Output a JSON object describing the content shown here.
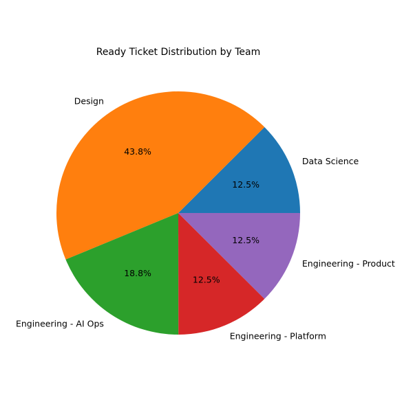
{
  "chart_data": {
    "type": "pie",
    "title": "Ready Ticket Distribution by Team",
    "categories": [
      "Data Science",
      "Design",
      "Engineering - AI Ops",
      "Engineering - Platform",
      "Engineering - Product"
    ],
    "values": [
      12.5,
      43.8,
      18.8,
      12.5,
      12.5
    ],
    "pct_labels": [
      "12.5%",
      "43.8%",
      "18.8%",
      "12.5%",
      "12.5%"
    ],
    "colors": [
      "#1f77b4",
      "#ff7f0e",
      "#2ca02c",
      "#d62728",
      "#9467bd"
    ],
    "start_angle_deg": 0,
    "direction": "counterclockwise"
  }
}
